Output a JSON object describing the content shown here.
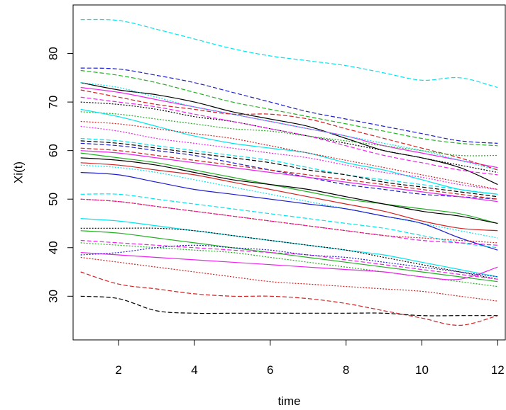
{
  "chart_data": {
    "type": "line",
    "title": "",
    "xlabel": "time",
    "ylabel": "Xi(t)",
    "xlim": [
      0.8,
      12.2
    ],
    "ylim": [
      21,
      90
    ],
    "xticks": [
      2,
      4,
      6,
      8,
      10,
      12
    ],
    "yticks": [
      30,
      40,
      50,
      60,
      70,
      80
    ],
    "grid": false,
    "legend": "none",
    "x": [
      1,
      2,
      3,
      4,
      5,
      6,
      7,
      8,
      9,
      10,
      11,
      12
    ],
    "series": [
      {
        "color": "#00e5ee",
        "dash": "dashed",
        "values": [
          87,
          86.8,
          85,
          83,
          81,
          79.5,
          78.5,
          77.5,
          76,
          74.5,
          75,
          73
        ]
      },
      {
        "color": "#1e1ecc",
        "dash": "dashed",
        "values": [
          77,
          76.8,
          75.5,
          74,
          72,
          70,
          68,
          66.5,
          65,
          63.5,
          62,
          61.5
        ]
      },
      {
        "color": "#22b022",
        "dash": "dashed",
        "values": [
          76.5,
          75.5,
          74,
          72,
          70,
          68.5,
          67,
          65.5,
          64,
          62.5,
          61.5,
          61
        ]
      },
      {
        "color": "#000000",
        "dash": "solid",
        "values": [
          74,
          72.5,
          71.5,
          70,
          68,
          66.5,
          65,
          62.5,
          60,
          58.5,
          56.5,
          53
        ]
      },
      {
        "color": "#ee22ee",
        "dash": "solid",
        "values": [
          73,
          72,
          70.5,
          69,
          67.5,
          66,
          64.5,
          63,
          61,
          59.5,
          58,
          56.5
        ]
      },
      {
        "color": "#00e5ee",
        "dash": "dotted",
        "values": [
          74,
          73,
          71,
          69,
          67.5,
          66,
          64.5,
          63,
          61.5,
          60,
          58,
          56
        ]
      },
      {
        "color": "#d22222",
        "dash": "dashed",
        "values": [
          72.5,
          71,
          69.5,
          68.5,
          67.5,
          67.5,
          66.5,
          64.5,
          62.5,
          60.5,
          58.5,
          56
        ]
      },
      {
        "color": "#000000",
        "dash": "dotted",
        "values": [
          70,
          69.5,
          68.5,
          67,
          66,
          64.5,
          63,
          61.5,
          60,
          58.5,
          57,
          55.5
        ]
      },
      {
        "color": "#ee22ee",
        "dash": "dashed",
        "values": [
          71,
          70,
          69,
          67.5,
          66,
          64.5,
          63,
          61,
          59,
          57.5,
          56,
          55
        ]
      },
      {
        "color": "#22b022",
        "dash": "dotted",
        "values": [
          68,
          67.5,
          66.5,
          65.5,
          64.5,
          64,
          63,
          62,
          61,
          60,
          59,
          59
        ]
      },
      {
        "color": "#00e5ee",
        "dash": "solid",
        "values": [
          68.5,
          67,
          65,
          63,
          61.5,
          60.5,
          59.5,
          57.5,
          56,
          54,
          52,
          51
        ]
      },
      {
        "color": "#d22222",
        "dash": "dotted",
        "values": [
          66,
          65.5,
          64.5,
          63.5,
          62.5,
          61,
          59.5,
          58,
          56.5,
          55,
          53.5,
          52
        ]
      },
      {
        "color": "#ee22ee",
        "dash": "dotted",
        "values": [
          65,
          64,
          62.5,
          61.5,
          60.5,
          59.5,
          58.5,
          57,
          55.5,
          54.5,
          53,
          52
        ]
      },
      {
        "color": "#00e5ee",
        "dash": "dashed",
        "values": [
          62.5,
          62,
          61,
          60,
          59,
          58,
          56.5,
          55,
          54,
          53,
          52,
          51
        ]
      },
      {
        "color": "#000000",
        "dash": "dashed",
        "values": [
          62,
          61.5,
          60.5,
          59.5,
          58.5,
          57.5,
          56,
          55,
          53.5,
          52.5,
          51.5,
          50.5
        ]
      },
      {
        "color": "#1e1ecc",
        "dash": "dashed",
        "values": [
          61.5,
          61,
          60,
          59,
          57.5,
          56,
          54.5,
          53,
          52,
          51,
          50.5,
          50
        ]
      },
      {
        "color": "#d22222",
        "dash": "dashed",
        "values": [
          60.5,
          60,
          59,
          58,
          57,
          56,
          55,
          54,
          53,
          52,
          51,
          50
        ]
      },
      {
        "color": "#ee22ee",
        "dash": "solid",
        "values": [
          60,
          59.5,
          58.5,
          57.5,
          56.5,
          55.5,
          54.5,
          53.5,
          52.5,
          51.5,
          50.5,
          49.5
        ]
      },
      {
        "color": "#22b022",
        "dash": "solid",
        "values": [
          59.5,
          58.5,
          57.5,
          56,
          54.5,
          53,
          51.5,
          50,
          49,
          48,
          47,
          45
        ]
      },
      {
        "color": "#000000",
        "dash": "solid",
        "values": [
          58.5,
          58,
          57,
          55.5,
          54,
          53,
          52,
          50.5,
          49,
          47.5,
          46.5,
          45
        ]
      },
      {
        "color": "#d22222",
        "dash": "solid",
        "values": [
          57.5,
          57,
          56,
          55,
          53.5,
          52,
          50.5,
          49,
          47.5,
          45.5,
          44,
          43.5
        ]
      },
      {
        "color": "#00e5ee",
        "dash": "dotted",
        "values": [
          57,
          56.5,
          55.5,
          54,
          52.5,
          51,
          49.5,
          48,
          46.5,
          45,
          43.5,
          42
        ]
      },
      {
        "color": "#1e1ecc",
        "dash": "solid",
        "values": [
          55.5,
          55,
          53.5,
          52,
          51,
          50,
          49,
          48,
          46.5,
          45,
          42,
          39.5
        ]
      },
      {
        "color": "#00e5ee",
        "dash": "dashed",
        "values": [
          51,
          51,
          50,
          49,
          48,
          47,
          46,
          45,
          44,
          42.5,
          41,
          40
        ]
      },
      {
        "color": "#ee22ee",
        "dash": "dashed",
        "values": [
          50,
          49.5,
          48.5,
          47.5,
          46.5,
          45.5,
          44.5,
          43.5,
          42.5,
          41.5,
          41,
          40.5
        ]
      },
      {
        "color": "#d22222",
        "dash": "dotted",
        "values": [
          50,
          49.5,
          48.5,
          47.5,
          46.5,
          45.5,
          44.5,
          43.5,
          42.5,
          42,
          41.5,
          41
        ]
      },
      {
        "color": "#00e5ee",
        "dash": "solid",
        "values": [
          46,
          45.5,
          44.5,
          43.5,
          42.5,
          41.5,
          40.5,
          39.5,
          38.5,
          37,
          35.5,
          34
        ]
      },
      {
        "color": "#000000",
        "dash": "dotted",
        "values": [
          44,
          44,
          44,
          43.5,
          42.5,
          41.5,
          40.5,
          39.5,
          38,
          36.5,
          35,
          33.5
        ]
      },
      {
        "color": "#22b022",
        "dash": "solid",
        "values": [
          43.5,
          43,
          42,
          41,
          40,
          39,
          38,
          37,
          36,
          35,
          34,
          33
        ]
      },
      {
        "color": "#ee22ee",
        "dash": "dashed",
        "values": [
          41.5,
          41,
          40.5,
          40,
          39.5,
          39,
          38.5,
          37.5,
          36.5,
          35.5,
          34.5,
          33.5
        ]
      },
      {
        "color": "#22b022",
        "dash": "dotted",
        "values": [
          41,
          40.5,
          40,
          39.5,
          39,
          38,
          37,
          36,
          35,
          34,
          33,
          32
        ]
      },
      {
        "color": "#ee22ee",
        "dash": "solid",
        "values": [
          39,
          38.5,
          38,
          37.5,
          37,
          36.5,
          36,
          35.5,
          35,
          34,
          33.5,
          36
        ]
      },
      {
        "color": "#1e1ecc",
        "dash": "dotted",
        "values": [
          38.5,
          39,
          40,
          40.5,
          40,
          39.5,
          38.5,
          38,
          37,
          36,
          35,
          34
        ]
      },
      {
        "color": "#d22222",
        "dash": "dotted",
        "values": [
          38,
          37,
          36,
          35,
          34,
          33,
          32.5,
          32,
          31.5,
          31,
          30,
          29
        ]
      },
      {
        "color": "#d22222",
        "dash": "dashed",
        "values": [
          35,
          32.5,
          31.5,
          30.5,
          30,
          30,
          29.5,
          28.5,
          27,
          25.5,
          24,
          26
        ]
      },
      {
        "color": "#000000",
        "dash": "dashed",
        "values": [
          30,
          29.5,
          27,
          26.5,
          26.5,
          26.5,
          26.5,
          26.5,
          26.5,
          26,
          26,
          26
        ]
      }
    ]
  }
}
